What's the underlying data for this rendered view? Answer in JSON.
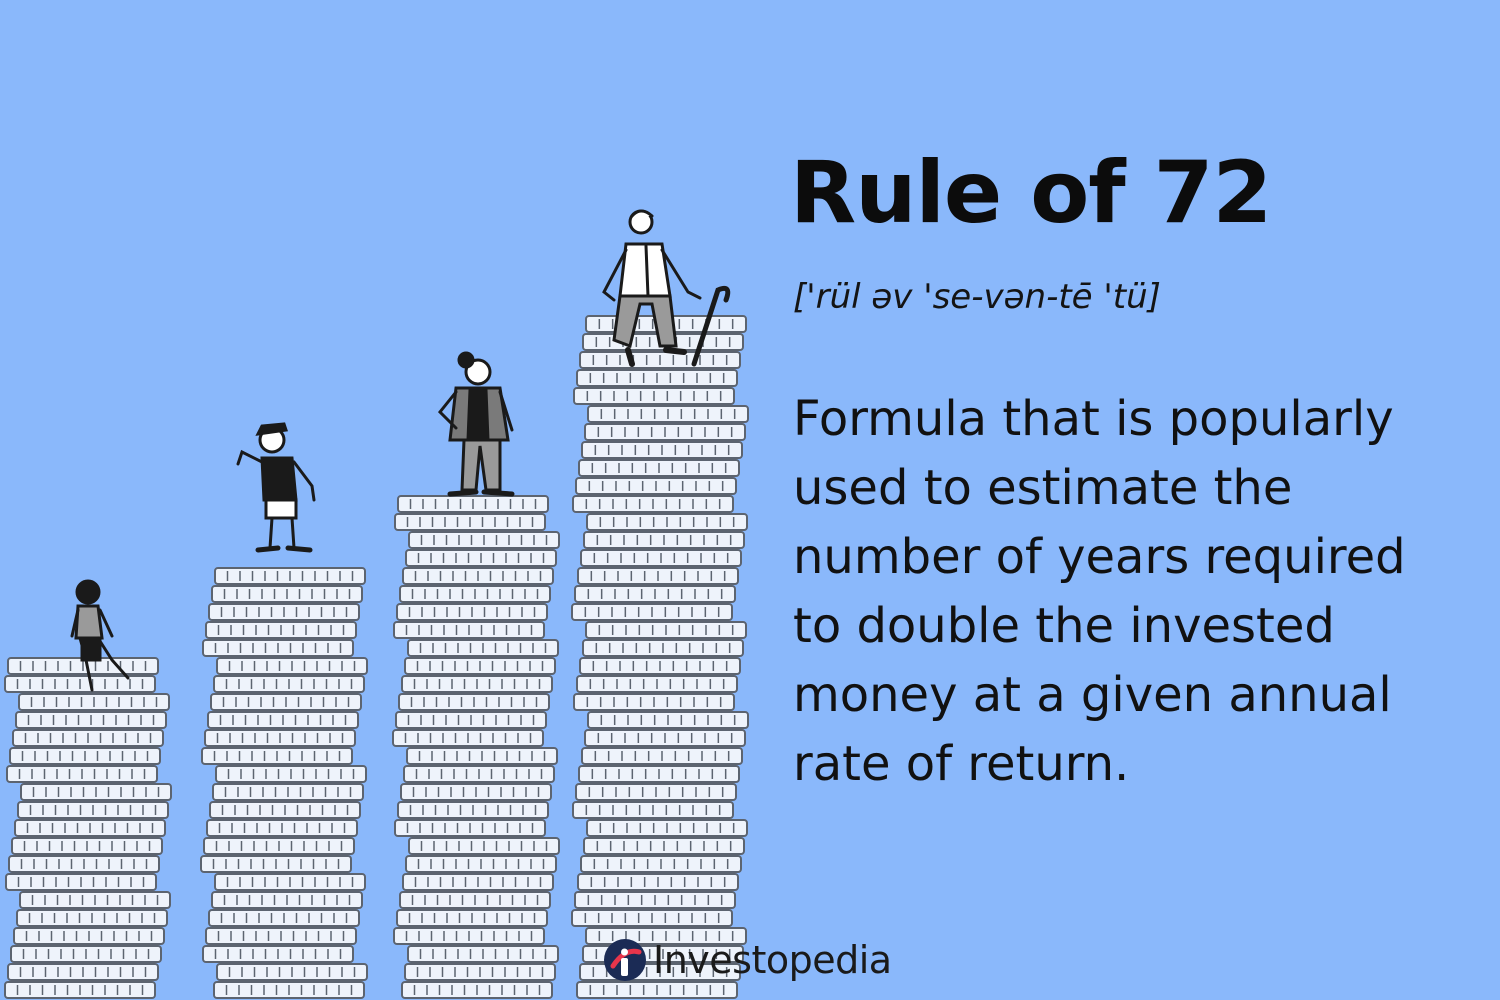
{
  "headline": {
    "title": "Rule of 72",
    "pronunciation": "['rül əv 'se-vən-tē 'tü]",
    "definition": "Formula that is popularly used to estimate the number of years required to double the invested money at a given annual rate of return."
  },
  "brand": {
    "name": "Investopedia",
    "logo_icon": "investopedia-logo-icon"
  },
  "illustration": {
    "description_icons": [
      "coin-stack-icon",
      "child-figure-icon",
      "teen-figure-icon",
      "adult-figure-icon",
      "elderly-figure-icon"
    ],
    "colors": {
      "background": "#8ab8fb",
      "coin_fill": "#eef3fb",
      "coin_stroke": "#5c6470",
      "figure_dark": "#1a1a1a",
      "figure_gray": "#7a7a7a"
    }
  }
}
